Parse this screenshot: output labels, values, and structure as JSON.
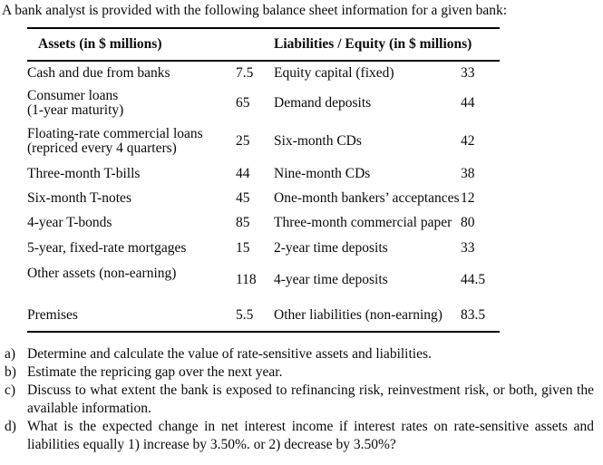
{
  "intro": "A bank analyst is provided with the following balance sheet information for a given bank:",
  "table": {
    "headers": {
      "assets": "Assets (in $ millions)",
      "liabilities": "Liabilities / Equity (in $ millions)"
    },
    "rows": [
      {
        "asset": "Cash and due from banks",
        "asset_value": "7.5",
        "liability": "Equity capital (fixed)",
        "liability_value": "33"
      },
      {
        "asset": "Consumer loans\n(1-year maturity)",
        "asset_value": "65",
        "liability": "Demand deposits",
        "liability_value": "44"
      },
      {
        "asset": "Floating-rate commercial loans\n(repriced every 4 quarters)",
        "asset_value": "25",
        "liability": "Six-month CDs",
        "liability_value": "42"
      },
      {
        "asset": "Three-month T-bills",
        "asset_value": "44",
        "liability": "Nine-month CDs",
        "liability_value": "38"
      },
      {
        "asset": "Six-month T-notes",
        "asset_value": "45",
        "liability": "One-month bankers’ acceptances",
        "liability_value": "12"
      },
      {
        "asset": "4-year T-bonds",
        "asset_value": "85",
        "liability": "Three-month commercial paper",
        "liability_value": "80"
      },
      {
        "asset": "5-year, fixed-rate mortgages",
        "asset_value": "15",
        "liability": "2-year time deposits",
        "liability_value": "33"
      },
      {
        "asset": "Other assets (non-earning)",
        "asset_value": "118",
        "liability": "4-year time deposits",
        "liability_value": "44.5"
      },
      {
        "asset": "Premises",
        "asset_value": "5.5",
        "liability": "Other liabilities (non-earning)",
        "liability_value": "83.5"
      }
    ]
  },
  "questions": [
    {
      "label": "a)",
      "text": "Determine and calculate the value of rate-sensitive assets and liabilities."
    },
    {
      "label": "b)",
      "text": "Estimate the repricing gap over the next year."
    },
    {
      "label": "c)",
      "text": "Discuss to what extent the bank is exposed to refinancing risk, reinvestment risk, or both, given the available information."
    },
    {
      "label": "d)",
      "text": "What is the expected change in net interest income if interest rates on rate-sensitive assets and liabilities equally 1) increase by 3.50%. or 2) decrease by 3.50%?"
    }
  ]
}
